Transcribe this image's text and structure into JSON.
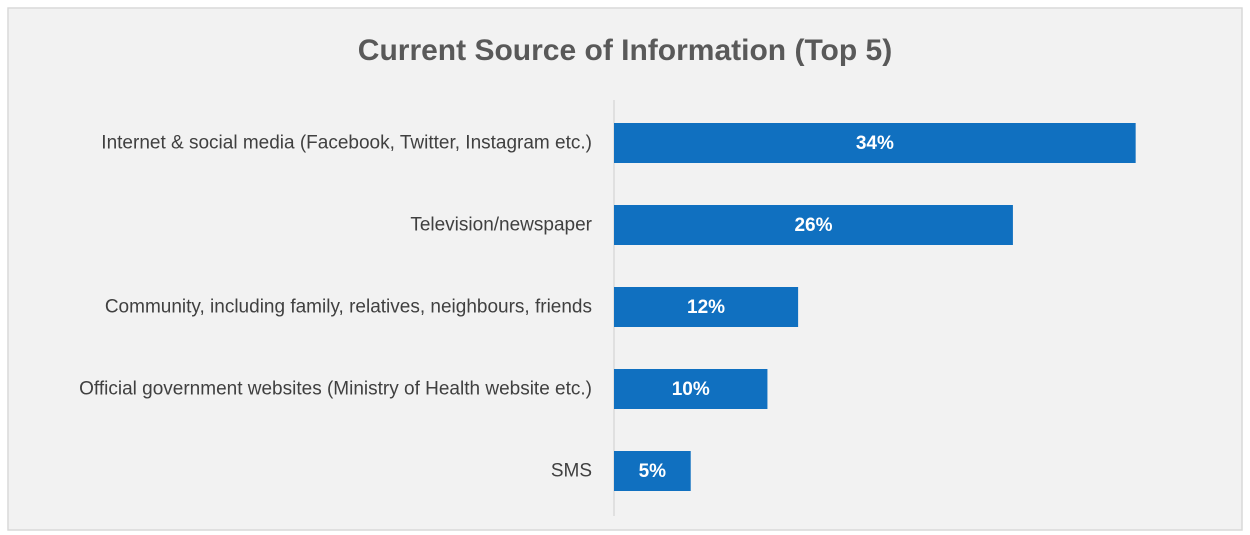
{
  "chart_data": {
    "type": "bar",
    "orientation": "horizontal",
    "title": "Current Source of Information (Top 5)",
    "categories": [
      "Internet & social media (Facebook, Twitter, Instagram etc.)",
      "Television/newspaper",
      "Community, including family, relatives, neighbours, friends",
      "Official government websites (Ministry of Health website etc.)",
      "SMS"
    ],
    "values": [
      34,
      26,
      12,
      10,
      5
    ],
    "value_labels": [
      "34%",
      "26%",
      "12%",
      "10%",
      "5%"
    ],
    "color": "#1070c0",
    "xlim": [
      0,
      35
    ]
  }
}
